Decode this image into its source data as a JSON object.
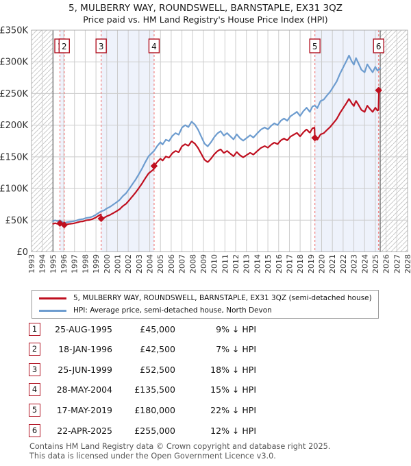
{
  "title": {
    "line1": "5, MULBERRY WAY, ROUNDSWELL, BARNSTAPLE, EX31 3QZ",
    "line2": "Price paid vs. HM Land Registry's House Price Index (HPI)"
  },
  "legend": {
    "series": [
      {
        "label": "5, MULBERRY WAY, ROUNDSWELL, BARNSTAPLE, EX31 3QZ (semi-detached house)",
        "color": "#bf0f1f"
      },
      {
        "label": "HPI: Average price, semi-detached house, North Devon",
        "color": "#6d9ccf"
      }
    ]
  },
  "footer": {
    "line1": "Contains HM Land Registry data © Crown copyright and database right 2025.",
    "line2": "This data is licensed under the Open Government Licence v3.0."
  },
  "table": {
    "rows": [
      {
        "n": "1",
        "date": "25-AUG-1995",
        "price": "£45,000",
        "delta": "9% ↓ HPI"
      },
      {
        "n": "2",
        "date": "18-JAN-1996",
        "price": "£42,500",
        "delta": "7% ↓ HPI"
      },
      {
        "n": "3",
        "date": "25-JUN-1999",
        "price": "£52,500",
        "delta": "18% ↓ HPI"
      },
      {
        "n": "4",
        "date": "28-MAY-2004",
        "price": "£135,500",
        "delta": "15% ↓ HPI"
      },
      {
        "n": "5",
        "date": "17-MAY-2019",
        "price": "£180,000",
        "delta": "22% ↓ HPI"
      },
      {
        "n": "6",
        "date": "22-APR-2025",
        "price": "£255,000",
        "delta": "12% ↓ HPI"
      }
    ]
  },
  "chart_data": {
    "type": "line",
    "xlim": [
      1993,
      2028
    ],
    "ylim": [
      0,
      350000
    ],
    "x_tick_years": [
      1993,
      1994,
      1995,
      1996,
      1997,
      1998,
      1999,
      2000,
      2001,
      2002,
      2003,
      2004,
      2005,
      2006,
      2007,
      2008,
      2009,
      2010,
      2011,
      2012,
      2013,
      2014,
      2015,
      2016,
      2017,
      2018,
      2019,
      2020,
      2021,
      2022,
      2023,
      2024,
      2025,
      2026,
      2027,
      2028
    ],
    "y_ticks": [
      {
        "v": 0,
        "label": "£0"
      },
      {
        "v": 50000,
        "label": "£50K"
      },
      {
        "v": 100000,
        "label": "£100K"
      },
      {
        "v": 150000,
        "label": "£150K"
      },
      {
        "v": 200000,
        "label": "£200K"
      },
      {
        "v": 250000,
        "label": "£250K"
      },
      {
        "v": 300000,
        "label": "£300K"
      },
      {
        "v": 350000,
        "label": "£350K"
      }
    ],
    "data_start_year": 1995.0,
    "data_end_year": 2025.45,
    "sales": [
      {
        "n": "1",
        "year": 1995.647,
        "price": 45000,
        "date": "25-AUG-1995",
        "delta": "9% ↓ HPI"
      },
      {
        "n": "2",
        "year": 1996.047,
        "price": 42500,
        "date": "18-JAN-1996",
        "delta": "7% ↓ HPI"
      },
      {
        "n": "3",
        "year": 1999.482,
        "price": 52500,
        "date": "25-JUN-1999",
        "delta": "18% ↓ HPI"
      },
      {
        "n": "4",
        "year": 2004.408,
        "price": 135500,
        "date": "28-MAY-2004",
        "delta": "15% ↓ HPI"
      },
      {
        "n": "5",
        "year": 2019.373,
        "price": 180000,
        "date": "17-MAY-2019",
        "delta": "22% ↓ HPI"
      },
      {
        "n": "6",
        "year": 2025.304,
        "price": 255000,
        "date": "22-APR-2025",
        "delta": "12% ↓ HPI"
      }
    ],
    "ownership_band_pairs": [
      [
        0,
        1
      ],
      [
        2,
        3
      ],
      [
        4,
        5
      ]
    ],
    "series": [
      {
        "name": "HPI: Average price, semi-detached house, North Devon",
        "derivation": "points",
        "points": [
          [
            1995.0,
            48500
          ],
          [
            1995.2,
            49800
          ],
          [
            1995.4,
            48600
          ],
          [
            1995.647,
            49500
          ],
          [
            1995.85,
            47200
          ],
          [
            1996.047,
            45700
          ],
          [
            1996.3,
            46800
          ],
          [
            1996.6,
            47600
          ],
          [
            1996.9,
            48200
          ],
          [
            1997.2,
            49600
          ],
          [
            1997.5,
            51200
          ],
          [
            1997.8,
            51800
          ],
          [
            1998.1,
            53600
          ],
          [
            1998.4,
            54200
          ],
          [
            1998.7,
            55800
          ],
          [
            1999.0,
            58500
          ],
          [
            1999.25,
            61500
          ],
          [
            1999.482,
            64000
          ],
          [
            1999.75,
            65500
          ],
          [
            2000.0,
            68500
          ],
          [
            2000.3,
            71000
          ],
          [
            2000.6,
            74500
          ],
          [
            2000.9,
            78000
          ],
          [
            2001.2,
            82000
          ],
          [
            2001.5,
            88000
          ],
          [
            2001.8,
            92500
          ],
          [
            2002.1,
            99500
          ],
          [
            2002.4,
            107000
          ],
          [
            2002.7,
            114500
          ],
          [
            2003.0,
            123000
          ],
          [
            2003.3,
            132000
          ],
          [
            2003.6,
            142000
          ],
          [
            2003.9,
            151000
          ],
          [
            2004.2,
            156000
          ],
          [
            2004.408,
            159400
          ],
          [
            2004.7,
            167000
          ],
          [
            2005.0,
            173000
          ],
          [
            2005.2,
            169500
          ],
          [
            2005.5,
            177000
          ],
          [
            2005.8,
            175000
          ],
          [
            2006.1,
            183000
          ],
          [
            2006.4,
            187500
          ],
          [
            2006.7,
            185000
          ],
          [
            2007.0,
            196000
          ],
          [
            2007.3,
            200000
          ],
          [
            2007.6,
            197000
          ],
          [
            2007.9,
            205500
          ],
          [
            2008.2,
            201000
          ],
          [
            2008.5,
            193000
          ],
          [
            2008.8,
            182000
          ],
          [
            2009.1,
            171000
          ],
          [
            2009.4,
            166500
          ],
          [
            2009.7,
            173000
          ],
          [
            2010.0,
            181000
          ],
          [
            2010.3,
            187000
          ],
          [
            2010.6,
            190500
          ],
          [
            2010.9,
            183500
          ],
          [
            2011.2,
            187500
          ],
          [
            2011.5,
            182500
          ],
          [
            2011.8,
            177500
          ],
          [
            2012.1,
            185500
          ],
          [
            2012.4,
            179500
          ],
          [
            2012.7,
            175500
          ],
          [
            2013.0,
            179500
          ],
          [
            2013.35,
            184000
          ],
          [
            2013.65,
            180500
          ],
          [
            2014.0,
            187000
          ],
          [
            2014.35,
            193000
          ],
          [
            2014.7,
            196500
          ],
          [
            2015.0,
            193500
          ],
          [
            2015.3,
            199000
          ],
          [
            2015.6,
            203000
          ],
          [
            2015.9,
            200000
          ],
          [
            2016.2,
            207000
          ],
          [
            2016.5,
            210500
          ],
          [
            2016.8,
            207000
          ],
          [
            2017.1,
            214000
          ],
          [
            2017.4,
            217500
          ],
          [
            2017.7,
            221000
          ],
          [
            2018.0,
            214500
          ],
          [
            2018.3,
            222000
          ],
          [
            2018.6,
            227500
          ],
          [
            2018.9,
            221000
          ],
          [
            2019.15,
            229500
          ],
          [
            2019.373,
            231000
          ],
          [
            2019.6,
            227000
          ],
          [
            2019.9,
            238000
          ],
          [
            2020.2,
            240500
          ],
          [
            2020.5,
            247000
          ],
          [
            2020.8,
            253000
          ],
          [
            2021.1,
            261000
          ],
          [
            2021.4,
            269000
          ],
          [
            2021.7,
            281000
          ],
          [
            2022.0,
            291000
          ],
          [
            2022.3,
            301000
          ],
          [
            2022.55,
            310000
          ],
          [
            2022.8,
            301000
          ],
          [
            2023.0,
            295500
          ],
          [
            2023.2,
            306000
          ],
          [
            2023.45,
            297000
          ],
          [
            2023.7,
            287500
          ],
          [
            2024.0,
            283500
          ],
          [
            2024.25,
            296000
          ],
          [
            2024.5,
            289500
          ],
          [
            2024.75,
            283500
          ],
          [
            2025.0,
            292000
          ],
          [
            2025.2,
            286000
          ],
          [
            2025.45,
            290000
          ]
        ]
      },
      {
        "name": "5, MULBERRY WAY, ROUNDSWELL, BARNSTAPLE, EX31 3QZ (semi-detached house)",
        "derivation": "hpi_scaled_by_last_sale_ratio"
      }
    ],
    "colors": {
      "price_line": "#bf0f1f",
      "hpi_line": "#6d9ccf",
      "sale_dashed": "#f08080",
      "ownership_band": "#eef2fb",
      "grid": "#cccccc",
      "plot_border": "#b0b0b0",
      "hatch": "#c9c9c9",
      "data_boundary": "#666666",
      "marker_box_border": "#b01020",
      "axis_text": "#333333"
    }
  }
}
